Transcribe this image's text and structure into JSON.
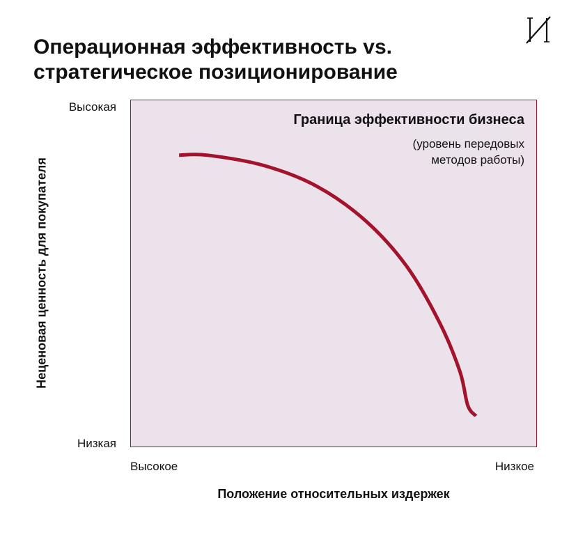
{
  "header": {
    "title_line1": "Операционная эффективность vs.",
    "title_line2": "стратегическое позиционирование",
    "logo_icon": "cyrillic-i-monogram-icon"
  },
  "colors": {
    "accent": "#a3132b",
    "plot_background": "#ebe2ec",
    "text": "#111111"
  },
  "chart_data": {
    "type": "line",
    "title": "Операционная эффективность vs. стратегическое позиционирование",
    "xlabel": "Положение относительных издержек",
    "ylabel": "Неценовая ценность для покупателя",
    "x_ticks": [
      "Высокое",
      "Низкое"
    ],
    "y_ticks": [
      "Высокая",
      "Низкая"
    ],
    "xlim": [
      0,
      1
    ],
    "ylim": [
      0,
      1
    ],
    "grid": false,
    "annotation": {
      "label": "Граница эффективности бизнеса",
      "note_line1": "(уровень передовых",
      "note_line2": "методов работы)"
    },
    "series": [
      {
        "x": [
          0.12,
          0.19,
          0.33,
          0.46,
          0.58,
          0.68,
          0.76,
          0.81,
          0.83,
          0.85
        ],
        "y": [
          0.84,
          0.84,
          0.81,
          0.75,
          0.65,
          0.52,
          0.36,
          0.22,
          0.12,
          0.09
        ]
      }
    ]
  }
}
